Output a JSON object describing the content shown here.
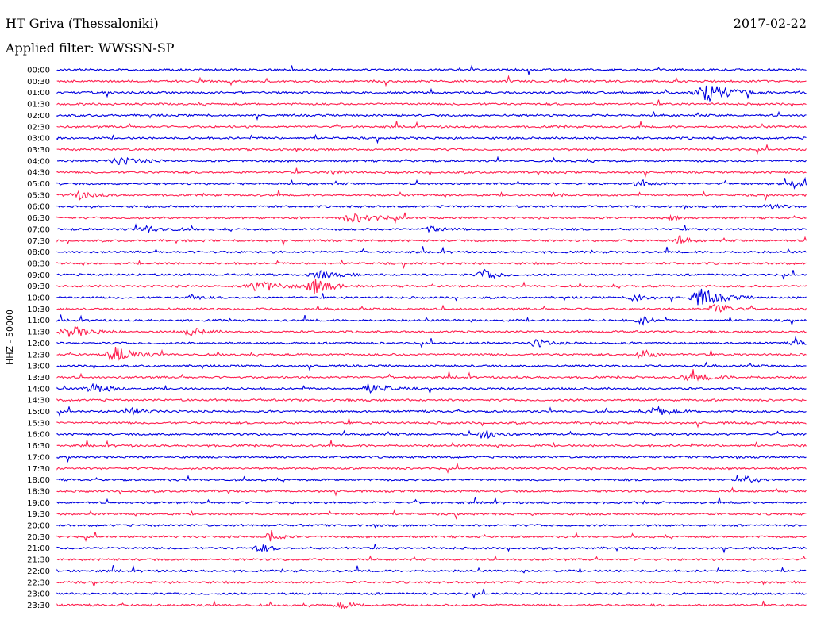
{
  "header": {
    "station": "HT Griva (Thessaloniki)",
    "date": "2017-02-22",
    "filter": "Applied filter: WWSSN-SP"
  },
  "chart_data": {
    "type": "line",
    "ylabel": "HHZ - 50000",
    "colors": [
      "#0000e0",
      "#ff1f4f"
    ],
    "rows": [
      {
        "label": "00:00",
        "events": []
      },
      {
        "label": "00:30",
        "events": []
      },
      {
        "label": "01:00",
        "events": [
          {
            "x": 0.87,
            "amp": 1.0,
            "w": 0.07
          }
        ]
      },
      {
        "label": "01:30",
        "events": []
      },
      {
        "label": "02:00",
        "events": []
      },
      {
        "label": "02:30",
        "events": []
      },
      {
        "label": "03:00",
        "events": []
      },
      {
        "label": "03:30",
        "events": []
      },
      {
        "label": "04:00",
        "events": [
          {
            "x": 0.085,
            "amp": 0.4,
            "w": 0.06
          }
        ]
      },
      {
        "label": "04:30",
        "events": [
          {
            "x": 0.37,
            "amp": 0.3,
            "w": 0.03
          }
        ]
      },
      {
        "label": "05:00",
        "events": [
          {
            "x": 0.78,
            "amp": 0.35,
            "w": 0.04
          },
          {
            "x": 0.985,
            "amp": 0.6,
            "w": 0.02
          }
        ]
      },
      {
        "label": "05:30",
        "events": [
          {
            "x": 0.03,
            "amp": 0.4,
            "w": 0.05
          },
          {
            "x": 0.66,
            "amp": 0.4,
            "w": 0.02
          }
        ]
      },
      {
        "label": "06:00",
        "events": [
          {
            "x": 0.95,
            "amp": 0.4,
            "w": 0.03
          }
        ]
      },
      {
        "label": "06:30",
        "events": [
          {
            "x": 0.4,
            "amp": 0.45,
            "w": 0.08
          },
          {
            "x": 0.82,
            "amp": 0.3,
            "w": 0.02
          }
        ]
      },
      {
        "label": "07:00",
        "events": [
          {
            "x": 0.12,
            "amp": 0.35,
            "w": 0.06
          },
          {
            "x": 0.5,
            "amp": 0.35,
            "w": 0.04
          }
        ]
      },
      {
        "label": "07:30",
        "events": [
          {
            "x": 0.83,
            "amp": 0.4,
            "w": 0.03
          }
        ]
      },
      {
        "label": "08:00",
        "events": []
      },
      {
        "label": "08:30",
        "events": []
      },
      {
        "label": "09:00",
        "events": [
          {
            "x": 0.35,
            "amp": 0.45,
            "w": 0.05
          },
          {
            "x": 0.57,
            "amp": 0.55,
            "w": 0.04
          }
        ]
      },
      {
        "label": "09:30",
        "events": [
          {
            "x": 0.27,
            "amp": 0.7,
            "w": 0.06
          },
          {
            "x": 0.345,
            "amp": 0.9,
            "w": 0.05
          }
        ]
      },
      {
        "label": "10:00",
        "events": [
          {
            "x": 0.18,
            "amp": 0.4,
            "w": 0.02
          },
          {
            "x": 0.77,
            "amp": 0.5,
            "w": 0.03
          },
          {
            "x": 0.86,
            "amp": 1.0,
            "w": 0.06
          }
        ]
      },
      {
        "label": "10:30",
        "events": [
          {
            "x": 0.88,
            "amp": 0.7,
            "w": 0.04
          }
        ]
      },
      {
        "label": "11:00",
        "events": [
          {
            "x": 0.78,
            "amp": 0.5,
            "w": 0.03
          }
        ]
      },
      {
        "label": "11:30",
        "events": [
          {
            "x": 0.02,
            "amp": 0.6,
            "w": 0.06
          },
          {
            "x": 0.18,
            "amp": 0.45,
            "w": 0.04
          }
        ]
      },
      {
        "label": "12:00",
        "events": [
          {
            "x": 0.64,
            "amp": 0.5,
            "w": 0.03
          },
          {
            "x": 0.985,
            "amp": 0.55,
            "w": 0.02
          }
        ]
      },
      {
        "label": "12:30",
        "events": [
          {
            "x": 0.08,
            "amp": 1.0,
            "w": 0.05
          },
          {
            "x": 0.78,
            "amp": 0.65,
            "w": 0.03
          }
        ]
      },
      {
        "label": "13:00",
        "events": []
      },
      {
        "label": "13:30",
        "events": [
          {
            "x": 0.85,
            "amp": 0.35,
            "w": 0.08
          }
        ]
      },
      {
        "label": "14:00",
        "events": [
          {
            "x": 0.05,
            "amp": 0.5,
            "w": 0.05
          },
          {
            "x": 0.42,
            "amp": 0.5,
            "w": 0.05
          }
        ]
      },
      {
        "label": "14:30",
        "events": []
      },
      {
        "label": "15:00",
        "events": [
          {
            "x": 0.1,
            "amp": 0.45,
            "w": 0.04
          },
          {
            "x": 0.8,
            "amp": 0.5,
            "w": 0.05
          }
        ]
      },
      {
        "label": "15:30",
        "events": []
      },
      {
        "label": "16:00",
        "events": [
          {
            "x": 0.57,
            "amp": 0.55,
            "w": 0.04
          }
        ]
      },
      {
        "label": "16:30",
        "events": []
      },
      {
        "label": "17:00",
        "events": []
      },
      {
        "label": "17:30",
        "events": []
      },
      {
        "label": "18:00",
        "events": [
          {
            "x": 0.92,
            "amp": 0.4,
            "w": 0.03
          }
        ]
      },
      {
        "label": "18:30",
        "events": []
      },
      {
        "label": "19:00",
        "events": []
      },
      {
        "label": "19:30",
        "events": []
      },
      {
        "label": "20:00",
        "events": []
      },
      {
        "label": "20:30",
        "events": [
          {
            "x": 0.285,
            "amp": 1.0,
            "w": 0.02
          }
        ]
      },
      {
        "label": "21:00",
        "events": [
          {
            "x": 0.27,
            "amp": 0.5,
            "w": 0.03
          }
        ]
      },
      {
        "label": "21:30",
        "events": []
      },
      {
        "label": "22:00",
        "events": []
      },
      {
        "label": "22:30",
        "events": []
      },
      {
        "label": "23:00",
        "events": []
      },
      {
        "label": "23:30",
        "events": [
          {
            "x": 0.38,
            "amp": 0.35,
            "w": 0.04
          }
        ]
      }
    ]
  }
}
